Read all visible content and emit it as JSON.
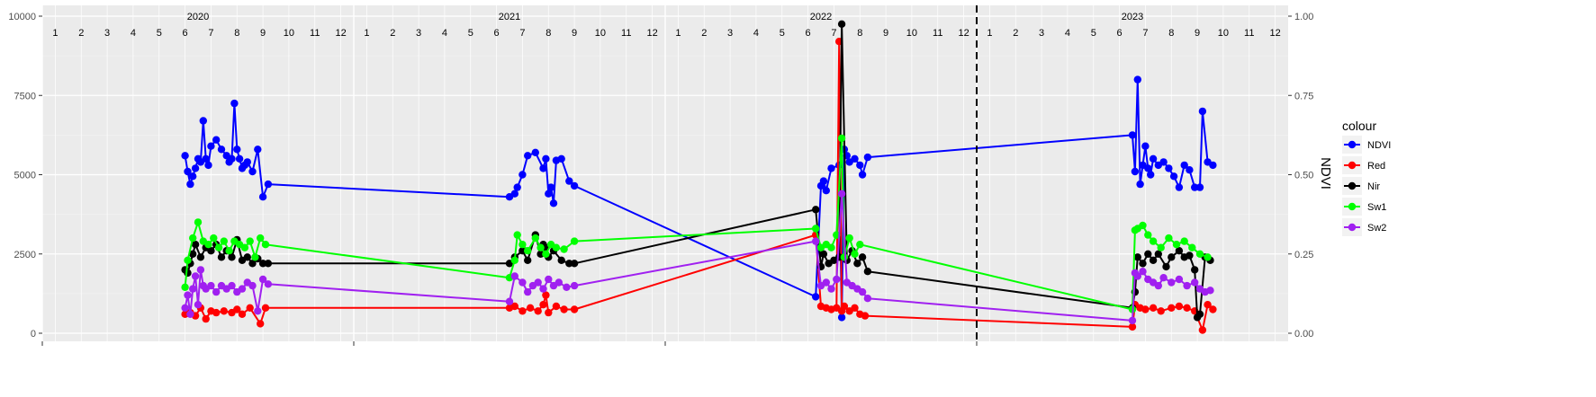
{
  "chart_data": {
    "type": "line",
    "title": "",
    "xlabel": "",
    "ylabel": "",
    "y2label": "NDVI",
    "ylim": [
      0,
      10000
    ],
    "y2lim": [
      0,
      1
    ],
    "yticks": [
      0,
      2500,
      5000,
      7500,
      10000
    ],
    "y2ticks": [
      "0.00",
      "0.25",
      "0.50",
      "0.75",
      "1.00"
    ],
    "x_unit": "months since 2020-01",
    "xlim": [
      0.5,
      48.5
    ],
    "year_labels": [
      {
        "label": "2020",
        "x": 6.5
      },
      {
        "label": "2021",
        "x": 18.5
      },
      {
        "label": "2022",
        "x": 30.5
      },
      {
        "label": "2023",
        "x": 42.5
      }
    ],
    "month_labels": [
      "1",
      "2",
      "3",
      "4",
      "5",
      "6",
      "7",
      "8",
      "9",
      "10",
      "11",
      "12"
    ],
    "vline": {
      "x": 36.5,
      "style": "dashed"
    },
    "grid": true,
    "legend": {
      "title": "colour",
      "position": "right"
    },
    "series": [
      {
        "name": "NDVI",
        "color": "#0000ff",
        "x": [
          6.0,
          6.1,
          6.2,
          6.3,
          6.4,
          6.5,
          6.6,
          6.7,
          6.8,
          6.9,
          7.0,
          7.2,
          7.4,
          7.6,
          7.7,
          7.8,
          7.9,
          8.0,
          8.1,
          8.2,
          8.3,
          8.4,
          8.6,
          8.8,
          9.0,
          9.2,
          18.5,
          18.7,
          18.8,
          19.0,
          19.2,
          19.5,
          19.8,
          19.9,
          20.0,
          20.1,
          20.2,
          20.3,
          20.5,
          20.8,
          21.0,
          30.3,
          30.5,
          30.6,
          30.7,
          30.9,
          31.2,
          31.3,
          31.4,
          31.5,
          31.6,
          31.8,
          32.0,
          32.1,
          32.3,
          42.5,
          42.6,
          42.7,
          42.8,
          42.9,
          43.0,
          43.1,
          43.2,
          43.3,
          43.5,
          43.7,
          43.9,
          44.1,
          44.3,
          44.5,
          44.7,
          44.9,
          45.1,
          45.2,
          45.4,
          45.6
        ],
        "values": [
          5600,
          5100,
          4700,
          4950,
          5200,
          5500,
          5400,
          6700,
          5500,
          5300,
          5900,
          6100,
          5800,
          5600,
          5400,
          5500,
          7250,
          5800,
          5500,
          5200,
          5300,
          5400,
          5100,
          5800,
          4300,
          4700,
          4300,
          4400,
          4600,
          5000,
          5600,
          5700,
          5200,
          5500,
          4400,
          4600,
          4100,
          5450,
          5500,
          4800,
          4650,
          1150,
          4650,
          4800,
          4500,
          5200,
          5300,
          500,
          5800,
          5600,
          5400,
          5500,
          5300,
          5000,
          5550,
          6250,
          5100,
          8000,
          4700,
          5300,
          5900,
          5200,
          5000,
          5500,
          5300,
          5400,
          5200,
          4950,
          4600,
          5300,
          5150,
          4600,
          4600,
          7000,
          5400,
          5300
        ]
      },
      {
        "name": "Red",
        "color": "#ff0000",
        "x": [
          6.0,
          6.2,
          6.4,
          6.6,
          6.8,
          7.0,
          7.2,
          7.5,
          7.8,
          8.0,
          8.2,
          8.5,
          8.9,
          9.1,
          18.5,
          18.7,
          19.0,
          19.3,
          19.6,
          19.8,
          19.9,
          20.0,
          20.3,
          20.6,
          21.0,
          30.3,
          30.5,
          30.7,
          30.9,
          31.1,
          31.2,
          31.3,
          31.4,
          31.6,
          31.8,
          32.0,
          32.2,
          42.5,
          42.6,
          42.8,
          43.0,
          43.3,
          43.6,
          44.0,
          44.3,
          44.6,
          44.9,
          45.2,
          45.4,
          45.6
        ],
        "values": [
          600,
          650,
          550,
          800,
          450,
          700,
          650,
          700,
          650,
          750,
          600,
          800,
          300,
          800,
          800,
          850,
          700,
          800,
          700,
          900,
          1200,
          650,
          850,
          750,
          750,
          3100,
          850,
          800,
          750,
          800,
          9200,
          700,
          850,
          700,
          800,
          600,
          550,
          200,
          900,
          800,
          750,
          800,
          700,
          800,
          850,
          800,
          700,
          100,
          900,
          750
        ]
      },
      {
        "name": "Nir",
        "color": "#000000",
        "x": [
          6.0,
          6.1,
          6.2,
          6.3,
          6.4,
          6.6,
          6.8,
          7.0,
          7.2,
          7.4,
          7.6,
          7.8,
          8.0,
          8.2,
          8.4,
          8.6,
          8.8,
          9.0,
          9.2,
          18.5,
          18.7,
          19.0,
          19.2,
          19.5,
          19.7,
          19.8,
          19.9,
          20.0,
          20.2,
          20.5,
          20.8,
          21.0,
          30.3,
          30.5,
          30.6,
          30.8,
          31.0,
          31.2,
          31.3,
          31.5,
          31.7,
          31.9,
          32.1,
          32.3,
          42.5,
          42.6,
          42.7,
          42.9,
          43.1,
          43.3,
          43.5,
          43.8,
          44.0,
          44.3,
          44.5,
          44.7,
          44.9,
          45.0,
          45.1,
          45.3,
          45.5
        ],
        "values": [
          2000,
          1900,
          2200,
          2500,
          2800,
          2400,
          2700,
          2600,
          2800,
          2400,
          2600,
          2400,
          2950,
          2300,
          2400,
          2200,
          2350,
          2200,
          2200,
          2200,
          2400,
          2600,
          2300,
          3100,
          2500,
          2800,
          2700,
          2400,
          2600,
          2300,
          2200,
          2200,
          3900,
          2100,
          2500,
          2200,
          2300,
          2400,
          9750,
          2300,
          2600,
          2200,
          2400,
          1950,
          800,
          1300,
          2400,
          2200,
          2500,
          2300,
          2500,
          2100,
          2400,
          2600,
          2400,
          2450,
          2000,
          500,
          600,
          2400,
          2300
        ]
      },
      {
        "name": "Sw1",
        "color": "#00ff00",
        "x": [
          6.0,
          6.1,
          6.3,
          6.5,
          6.7,
          6.9,
          7.1,
          7.3,
          7.5,
          7.7,
          7.9,
          8.1,
          8.3,
          8.5,
          8.7,
          8.9,
          9.1,
          18.5,
          18.7,
          18.8,
          19.0,
          19.2,
          19.5,
          19.7,
          19.9,
          20.1,
          20.3,
          20.6,
          21.0,
          30.3,
          30.5,
          30.7,
          30.9,
          31.1,
          31.3,
          31.4,
          31.6,
          31.8,
          32.0,
          42.5,
          42.6,
          42.7,
          42.9,
          43.1,
          43.3,
          43.6,
          43.9,
          44.2,
          44.5,
          44.8,
          45.1,
          45.4
        ],
        "values": [
          1450,
          2300,
          3000,
          3500,
          2900,
          2800,
          3000,
          2700,
          2900,
          2600,
          2900,
          2800,
          2700,
          2900,
          2400,
          3000,
          2800,
          1750,
          2300,
          3100,
          2800,
          2600,
          3000,
          2700,
          2500,
          2800,
          2700,
          2650,
          2900,
          3300,
          2700,
          2800,
          2700,
          3100,
          6150,
          2400,
          3000,
          2500,
          2800,
          750,
          3250,
          3300,
          3400,
          3100,
          2900,
          2700,
          3000,
          2800,
          2900,
          2700,
          2500,
          2400
        ]
      },
      {
        "name": "Sw2",
        "color": "#a020f0",
        "x": [
          6.0,
          6.1,
          6.2,
          6.3,
          6.4,
          6.5,
          6.6,
          6.7,
          6.8,
          7.0,
          7.2,
          7.4,
          7.6,
          7.8,
          8.0,
          8.2,
          8.4,
          8.6,
          8.8,
          9.0,
          9.2,
          18.5,
          18.7,
          19.0,
          19.2,
          19.4,
          19.6,
          19.8,
          20.0,
          20.2,
          20.4,
          20.7,
          21.0,
          30.3,
          30.5,
          30.7,
          30.9,
          31.1,
          31.3,
          31.5,
          31.7,
          31.9,
          32.1,
          32.3,
          42.5,
          42.6,
          42.7,
          42.9,
          43.1,
          43.3,
          43.5,
          43.7,
          44.0,
          44.3,
          44.6,
          44.9,
          45.1,
          45.3,
          45.5
        ],
        "values": [
          800,
          1200,
          600,
          1400,
          1800,
          900,
          2000,
          1500,
          1400,
          1500,
          1300,
          1500,
          1400,
          1500,
          1300,
          1400,
          1600,
          1500,
          700,
          1700,
          1550,
          1000,
          1800,
          1600,
          1300,
          1500,
          1600,
          1400,
          1700,
          1500,
          1600,
          1450,
          1500,
          2900,
          1500,
          1600,
          1400,
          1700,
          4400,
          1600,
          1500,
          1400,
          1300,
          1100,
          400,
          1900,
          1800,
          1950,
          1700,
          1600,
          1500,
          1750,
          1600,
          1700,
          1500,
          1600,
          1400,
          1300,
          1350
        ]
      }
    ]
  }
}
